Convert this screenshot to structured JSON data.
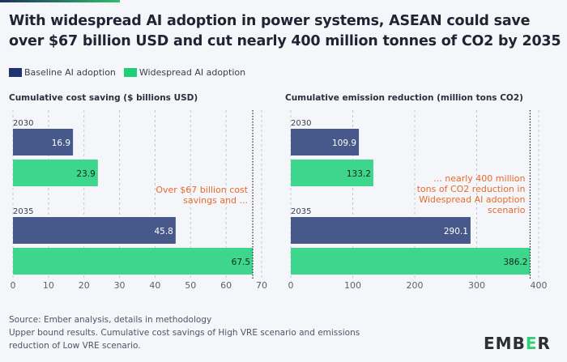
{
  "title": "With widespread AI adoption in power systems, ASEAN could save over $67 billion USD and cut nearly 400 million tonnes of CO2 by 2035",
  "legend": [
    {
      "label": "Baseline AI adoption",
      "color": "#1f3370"
    },
    {
      "label": "Widespread AI adoption",
      "color": "#1fcf78"
    }
  ],
  "colors": {
    "baseline_bar": "#47598a",
    "widespread_bar": "#3dd68c",
    "annotation": "#e8692a"
  },
  "chart_data": [
    {
      "type": "bar",
      "orientation": "horizontal",
      "title": "Cumulative cost saving ($ billions USD)",
      "categories": [
        "2030",
        "2035"
      ],
      "series": [
        {
          "name": "Baseline AI adoption",
          "values": [
            16.9,
            45.8
          ]
        },
        {
          "name": "Widespread AI adoption",
          "values": [
            23.9,
            67.5
          ]
        }
      ],
      "xlim": [
        0,
        70
      ],
      "ticks": [
        0,
        10,
        20,
        30,
        40,
        50,
        60,
        70
      ],
      "reference_line": 67.5,
      "annotation": "Over $67 billion cost savings and ...",
      "grid": true
    },
    {
      "type": "bar",
      "orientation": "horizontal",
      "title": "Cumulative emission reduction (million tons CO2)",
      "categories": [
        "2030",
        "2035"
      ],
      "series": [
        {
          "name": "Baseline AI adoption",
          "values": [
            109.9,
            290.1
          ]
        },
        {
          "name": "Widespread AI adoption",
          "values": [
            133.2,
            386.2
          ]
        }
      ],
      "xlim": [
        0,
        400
      ],
      "ticks": [
        0,
        100,
        200,
        300,
        400
      ],
      "reference_line": 386.2,
      "annotation": "... nearly 400 million tons of CO2 reduction in Widespread AI adoption scenario",
      "grid": true
    }
  ],
  "footer": {
    "source": "Source: Ember analysis, details in methodology",
    "note": "Upper bound results. Cumulative cost savings of High VRE scenario and emissions reduction of Low VRE scenario.",
    "logo": "EMBER"
  }
}
